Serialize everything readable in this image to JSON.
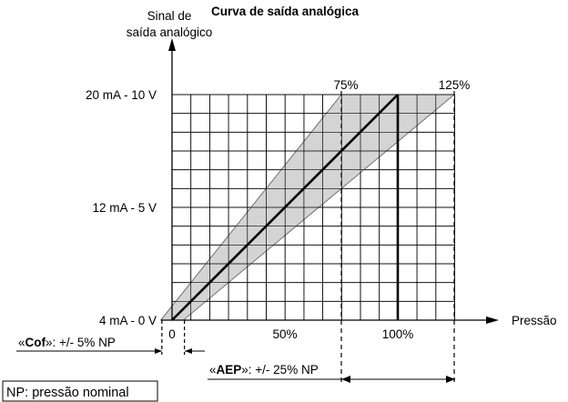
{
  "title": "Curva de saída analógica",
  "y_axis": {
    "label_line1": "Sinal de",
    "label_line2": "saída analógico"
  },
  "x_axis": {
    "label": "Pressão"
  },
  "y_ticks": [
    {
      "label": "20 mA - 10 V",
      "level": 100
    },
    {
      "label": "12 mA - 5 V",
      "level": 50
    },
    {
      "label": "4 mA - 0 V",
      "level": 0
    }
  ],
  "x_ticks": [
    {
      "label": "0",
      "pressure": 0
    },
    {
      "label": "50%",
      "pressure": 50
    },
    {
      "label": "100%",
      "pressure": 100
    }
  ],
  "markers": [
    {
      "label": "75%",
      "pressure": 75
    },
    {
      "label": "125%",
      "pressure": 125
    }
  ],
  "cof": {
    "open": "«",
    "keyword": "Cof",
    "close": "»",
    "text": ": +/- 5% NP"
  },
  "aep": {
    "open": "«",
    "keyword": "AEP",
    "close": "»",
    "text": ": +/- 25% NP"
  },
  "np_note": "NP: pressão nominal",
  "colors": {
    "band": "#d4d4d4",
    "line": "#000000",
    "grid": "#000000"
  }
}
